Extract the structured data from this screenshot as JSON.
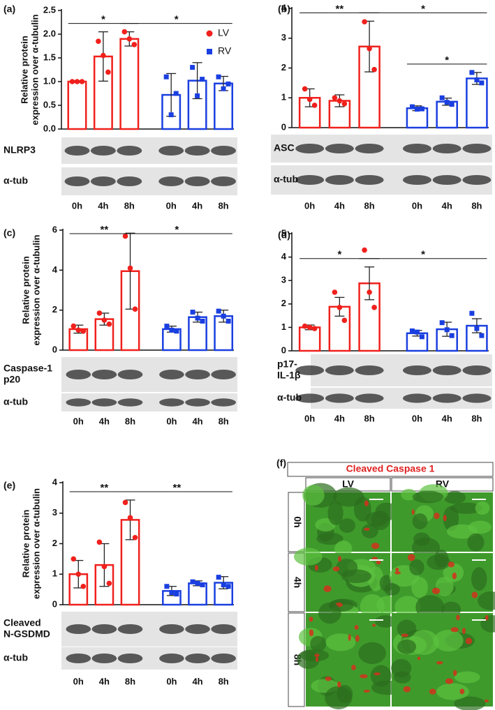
{
  "chart_data": [
    {
      "type": "bar",
      "panel_label": "(a)",
      "ylabel": [
        "Relative protein",
        "expression over α-tubulin"
      ],
      "categories": [
        "0h",
        "4h",
        "8h",
        "0h",
        "4h",
        "8h"
      ],
      "series": [
        {
          "name": "LV",
          "color": "#f0201c",
          "marker": "circle",
          "values": [
            1.0,
            1.53,
            1.9,
            null,
            null,
            null
          ],
          "errors": [
            0.02,
            0.52,
            0.15,
            null,
            null,
            null
          ],
          "points": [
            [
              1.0,
              1.0,
              1.0
            ],
            [
              1.85,
              1.55,
              1.2
            ],
            [
              2.05,
              1.9,
              1.78
            ],
            null,
            null,
            null
          ]
        },
        {
          "name": "RV",
          "color": "#1a3fe0",
          "marker": "square",
          "values": [
            null,
            null,
            null,
            0.72,
            1.02,
            0.96
          ],
          "errors": [
            null,
            null,
            null,
            0.45,
            0.38,
            0.15
          ],
          "points": [
            null,
            null,
            null,
            [
              1.1,
              0.3,
              0.75
            ],
            [
              1.3,
              0.7,
              1.05
            ],
            [
              1.1,
              0.85,
              0.95
            ]
          ]
        }
      ],
      "ylim": [
        0,
        2.5
      ],
      "yticks": [
        {
          "value": 0,
          "label": "0.0"
        },
        0.5,
        {
          "value": 1,
          "label": "1.0"
        },
        1.5,
        {
          "value": 2,
          "label": "2.0"
        },
        2.5
      ],
      "legend": "upper right",
      "significance": [
        {
          "from": 0,
          "to": 2,
          "label": "*"
        },
        {
          "from": 2,
          "to": 5,
          "label": "*"
        }
      ],
      "blots": [
        [
          "NLRP3"
        ],
        [
          "α-tub"
        ]
      ]
    },
    {
      "type": "bar",
      "panel_label": "(b)",
      "categories": [
        "0h",
        "4h",
        "8h",
        "0h",
        "4h",
        "8h"
      ],
      "series": [
        {
          "name": "LV",
          "color": "#f0201c",
          "marker": "circle",
          "values": [
            1.0,
            0.9,
            2.72,
            null,
            null,
            null
          ],
          "errors": [
            0.3,
            0.2,
            0.85,
            null,
            null,
            null
          ],
          "points": [
            [
              1.3,
              0.95,
              0.75
            ],
            [
              1.0,
              0.9,
              0.8
            ],
            [
              3.55,
              2.65,
              1.95
            ],
            null,
            null,
            null
          ]
        },
        {
          "name": "RV",
          "color": "#1a3fe0",
          "marker": "square",
          "values": [
            null,
            null,
            null,
            0.65,
            0.87,
            1.65
          ],
          "errors": [
            null,
            null,
            null,
            0.08,
            0.12,
            0.2
          ],
          "points": [
            null,
            null,
            null,
            [
              0.7,
              0.62,
              0.63
            ],
            [
              1.0,
              0.85,
              0.78
            ],
            [
              1.85,
              1.6,
              1.5
            ]
          ]
        }
      ],
      "ylim": [
        0,
        4
      ],
      "yticks": [
        0,
        1,
        2,
        3,
        4
      ],
      "significance": [
        {
          "from": 0,
          "to": 2,
          "label": "**"
        },
        {
          "from": 2,
          "to": 5,
          "label": "*"
        },
        {
          "from": 3,
          "to": 5,
          "label": "*"
        }
      ],
      "blots": [
        [
          "ASC"
        ],
        [
          "α-tub"
        ]
      ]
    },
    {
      "type": "bar",
      "panel_label": "(c)",
      "ylabel": [
        "Relative protein",
        "expression over α-tubulin"
      ],
      "categories": [
        "0h",
        "4h",
        "8h",
        "0h",
        "4h",
        "8h"
      ],
      "series": [
        {
          "name": "LV",
          "color": "#f0201c",
          "marker": "circle",
          "values": [
            1.05,
            1.55,
            3.95,
            null,
            null,
            null
          ],
          "errors": [
            0.2,
            0.3,
            1.9,
            null,
            null,
            null
          ],
          "points": [
            [
              1.2,
              1.0,
              0.95
            ],
            [
              1.85,
              1.5,
              1.3
            ],
            [
              5.7,
              4.1,
              2.05
            ],
            null,
            null,
            null
          ]
        },
        {
          "name": "RV",
          "color": "#1a3fe0",
          "marker": "square",
          "values": [
            null,
            null,
            null,
            1.05,
            1.65,
            1.7
          ],
          "errors": [
            null,
            null,
            null,
            0.15,
            0.25,
            0.3
          ],
          "points": [
            null,
            null,
            null,
            [
              1.2,
              1.0,
              0.95
            ],
            [
              1.9,
              1.6,
              1.45
            ],
            [
              1.95,
              1.7,
              1.45
            ]
          ]
        }
      ],
      "ylim": [
        0,
        6
      ],
      "yticks": [
        0,
        2,
        4,
        6
      ],
      "significance": [
        {
          "from": 0,
          "to": 2,
          "label": "**"
        },
        {
          "from": 2,
          "to": 5,
          "label": "*"
        }
      ],
      "blots": [
        [
          "Caspase-1",
          "p20"
        ],
        [
          "α-tub"
        ]
      ]
    },
    {
      "type": "bar",
      "panel_label": "(d)",
      "categories": [
        "0h",
        "4h",
        "8h",
        "0h",
        "4h",
        "8h"
      ],
      "series": [
        {
          "name": "LV",
          "color": "#f0201c",
          "marker": "circle",
          "values": [
            1.0,
            1.88,
            2.88,
            null,
            null,
            null
          ],
          "errors": [
            0.1,
            0.4,
            0.7,
            null,
            null,
            null
          ],
          "points": [
            [
              1.05,
              1.0,
              0.95
            ],
            [
              2.5,
              1.85,
              1.3
            ],
            [
              4.3,
              2.5,
              1.85
            ],
            null,
            null,
            null
          ]
        },
        {
          "name": "RV",
          "color": "#1a3fe0",
          "marker": "square",
          "values": [
            null,
            null,
            null,
            0.75,
            0.92,
            1.07
          ],
          "errors": [
            null,
            null,
            null,
            0.12,
            0.3,
            0.3
          ],
          "points": [
            null,
            null,
            null,
            [
              0.85,
              0.8,
              0.6
            ],
            [
              1.2,
              0.9,
              0.65
            ],
            [
              1.6,
              0.95,
              0.65
            ]
          ]
        }
      ],
      "ylim": [
        0,
        5
      ],
      "yticks": [
        0,
        1,
        2,
        3,
        4,
        5
      ],
      "significance": [
        {
          "from": 0,
          "to": 2,
          "label": "*"
        },
        {
          "from": 2,
          "to": 5,
          "label": "*"
        }
      ],
      "blots": [
        [
          "p17-",
          "IL-1β"
        ],
        [
          "α-tub"
        ]
      ]
    },
    {
      "type": "bar",
      "panel_label": "(e)",
      "ylabel": [
        "Relative protein",
        "expression over α-tubulin"
      ],
      "categories": [
        "0h",
        "4h",
        "8h",
        "0h",
        "4h",
        "8h"
      ],
      "series": [
        {
          "name": "LV",
          "color": "#f0201c",
          "marker": "circle",
          "values": [
            1.0,
            1.3,
            2.78,
            null,
            null,
            null
          ],
          "errors": [
            0.45,
            0.7,
            0.65,
            null,
            null,
            null
          ],
          "points": [
            [
              1.5,
              1.0,
              0.6
            ],
            [
              2.05,
              1.25,
              0.7
            ],
            [
              3.35,
              2.85,
              2.2
            ],
            null,
            null,
            null
          ]
        },
        {
          "name": "RV",
          "color": "#1a3fe0",
          "marker": "square",
          "values": [
            null,
            null,
            null,
            0.45,
            0.7,
            0.72
          ],
          "errors": [
            null,
            null,
            null,
            0.15,
            0.08,
            0.2
          ],
          "points": [
            null,
            null,
            null,
            [
              0.6,
              0.4,
              0.35
            ],
            [
              0.75,
              0.7,
              0.65
            ],
            [
              0.9,
              0.65,
              0.6
            ]
          ]
        }
      ],
      "ylim": [
        0,
        4
      ],
      "yticks": [
        0,
        1,
        2,
        3,
        4
      ],
      "significance": [
        {
          "from": 0,
          "to": 2,
          "label": "**"
        },
        {
          "from": 2,
          "to": 5,
          "label": "**"
        }
      ],
      "blots": [
        [
          "Cleaved",
          "N-GSDMD"
        ],
        [
          "α-tub"
        ]
      ]
    }
  ],
  "image_panel": {
    "panel_label": "(f)",
    "title": "Cleaved Caspase 1",
    "columns": [
      "LV",
      "RV"
    ],
    "rows": [
      "0h",
      "4h",
      "8h"
    ]
  }
}
